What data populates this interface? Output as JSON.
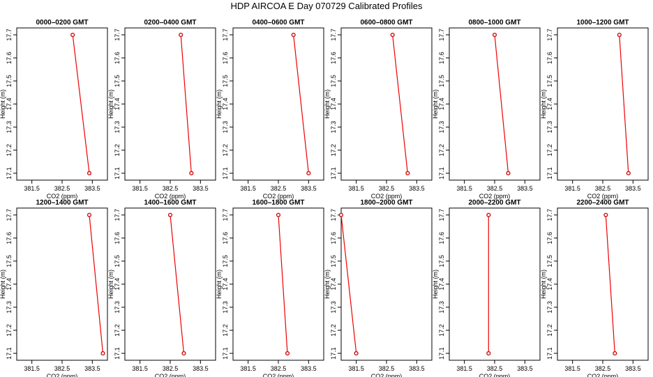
{
  "title": "HDP AIRCOA E  Day 070729  Calibrated Profiles",
  "chart_data": {
    "type": "line",
    "layout": "2 rows x 6 columns",
    "xlabel": "CO2 (ppm)",
    "ylabel": "Height (m)",
    "xlim": [
      381.0,
      384.0
    ],
    "ylim": [
      17.07,
      17.73
    ],
    "xticks": [
      381.5,
      382.5,
      383.5
    ],
    "xtick_labels": [
      "381.5",
      "382.5",
      "383.5"
    ],
    "yticks": [
      17.1,
      17.2,
      17.3,
      17.4,
      17.5,
      17.6,
      17.7
    ],
    "ytick_labels": [
      "17.1",
      "17.2",
      "17.3",
      "17.4",
      "17.5",
      "17.6",
      "17.7"
    ],
    "panels": [
      {
        "title": "0000–0200 GMT",
        "points": [
          {
            "x": 382.85,
            "y": 17.7
          },
          {
            "x": 383.4,
            "y": 17.1
          }
        ]
      },
      {
        "title": "0200–0400 GMT",
        "points": [
          {
            "x": 382.85,
            "y": 17.7
          },
          {
            "x": 383.2,
            "y": 17.1
          }
        ]
      },
      {
        "title": "0400–0600 GMT",
        "points": [
          {
            "x": 383.0,
            "y": 17.7
          },
          {
            "x": 383.5,
            "y": 17.1
          }
        ]
      },
      {
        "title": "0600–0800 GMT",
        "points": [
          {
            "x": 382.7,
            "y": 17.7
          },
          {
            "x": 383.2,
            "y": 17.1
          }
        ]
      },
      {
        "title": "0800–1000 GMT",
        "points": [
          {
            "x": 382.5,
            "y": 17.7
          },
          {
            "x": 382.95,
            "y": 17.1
          }
        ]
      },
      {
        "title": "1000–1200 GMT",
        "points": [
          {
            "x": 383.05,
            "y": 17.7
          },
          {
            "x": 383.35,
            "y": 17.1
          }
        ]
      },
      {
        "title": "1200–1400 GMT",
        "points": [
          {
            "x": 383.4,
            "y": 17.7
          },
          {
            "x": 383.85,
            "y": 17.1
          }
        ]
      },
      {
        "title": "1400–1600 GMT",
        "points": [
          {
            "x": 382.5,
            "y": 17.7
          },
          {
            "x": 382.95,
            "y": 17.1
          }
        ]
      },
      {
        "title": "1600–1800 GMT",
        "points": [
          {
            "x": 382.5,
            "y": 17.7
          },
          {
            "x": 382.8,
            "y": 17.1
          }
        ]
      },
      {
        "title": "1800–2000 GMT",
        "points": [
          {
            "x": 381.0,
            "y": 17.7
          },
          {
            "x": 381.5,
            "y": 17.1
          }
        ]
      },
      {
        "title": "2000–2200 GMT",
        "points": [
          {
            "x": 382.3,
            "y": 17.7
          },
          {
            "x": 382.3,
            "y": 17.1
          }
        ]
      },
      {
        "title": "2200–2400 GMT",
        "points": [
          {
            "x": 382.6,
            "y": 17.7
          },
          {
            "x": 382.9,
            "y": 17.1
          }
        ]
      }
    ],
    "colors": {
      "line": "#ee0000",
      "marker": "#cc0000"
    },
    "marker": "open-circle",
    "grid": false,
    "legend": "none"
  }
}
